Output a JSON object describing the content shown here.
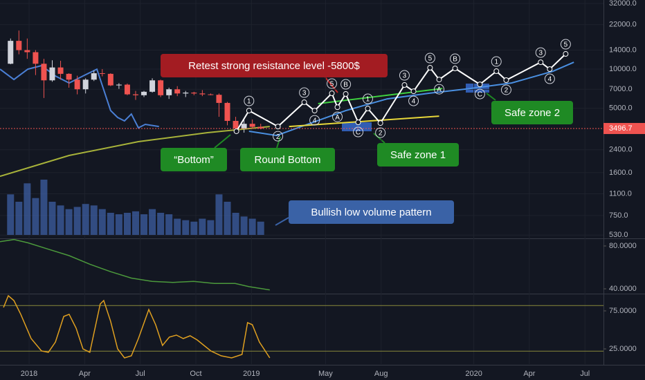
{
  "chart_data": [
    {
      "type": "candlestick",
      "log_scale": true,
      "grid": true,
      "ylim": [
        500,
        34000
      ],
      "yticks": [
        {
          "value": 32000,
          "label": "32000.0"
        },
        {
          "value": 22000,
          "label": "22000.0"
        },
        {
          "value": 14000,
          "label": "14000.0"
        },
        {
          "value": 10000,
          "label": "10000.0"
        },
        {
          "value": 7000,
          "label": "7000.0"
        },
        {
          "value": 5000,
          "label": "5000.0"
        },
        {
          "value": 2400,
          "label": "2400.0"
        },
        {
          "value": 1600,
          "label": "1600.0"
        },
        {
          "value": 1100,
          "label": "1100.0"
        },
        {
          "value": 750,
          "label": "750.0"
        },
        {
          "value": 530,
          "label": "530.0"
        }
      ],
      "xlim": [
        -1.57,
        31
      ],
      "xticks": [
        {
          "value": 0,
          "label": "2018"
        },
        {
          "value": 3,
          "label": "Apr"
        },
        {
          "value": 6,
          "label": "Jul"
        },
        {
          "value": 9,
          "label": "Oct"
        },
        {
          "value": 12,
          "label": "2019"
        },
        {
          "value": 16,
          "label": "May"
        },
        {
          "value": 19,
          "label": "Aug"
        },
        {
          "value": 24,
          "label": "2020"
        },
        {
          "value": 27,
          "label": "Apr"
        },
        {
          "value": 30,
          "label": "Jul"
        }
      ],
      "up_color": "#d1d4dc",
      "down_color": "#ef5350",
      "x": [
        -1.0,
        -0.55,
        -0.1,
        0.35,
        0.8,
        1.25,
        1.7,
        2.15,
        2.6,
        3.05,
        3.5,
        3.95,
        4.4,
        4.85,
        5.3,
        5.75,
        6.2,
        6.65,
        7.1,
        7.55,
        8.0,
        8.45,
        8.9,
        9.35,
        9.8,
        10.25,
        10.7,
        11.15,
        11.6,
        12.05,
        12.5
      ],
      "open": [
        11000,
        16500,
        14000,
        13500,
        11000,
        8200,
        10300,
        9200,
        8300,
        7000,
        8300,
        9300,
        9200,
        7500,
        7600,
        6400,
        6300,
        6700,
        8200,
        6300,
        7000,
        6500,
        6600,
        6500,
        6400,
        6350,
        5500,
        4000,
        3500,
        3800,
        3600
      ],
      "high": [
        17200,
        19800,
        17200,
        14000,
        12000,
        11700,
        11600,
        9300,
        8900,
        8500,
        9750,
        10000,
        9300,
        7800,
        7750,
        6800,
        6800,
        8500,
        8300,
        7200,
        7400,
        6800,
        6700,
        6900,
        6500,
        6500,
        5600,
        4300,
        4200,
        4100,
        3800
      ],
      "low": [
        10900,
        13000,
        12000,
        9000,
        6000,
        8000,
        8300,
        7200,
        6400,
        6500,
        8100,
        8800,
        7400,
        7050,
        6300,
        5800,
        6100,
        6600,
        6100,
        5900,
        6200,
        6100,
        6300,
        6200,
        6300,
        4300,
        3700,
        3200,
        3250,
        3500,
        3450
      ],
      "close": [
        16500,
        14000,
        13500,
        11000,
        8200,
        10300,
        9200,
        8300,
        7000,
        8300,
        9300,
        9200,
        7500,
        7600,
        6400,
        6300,
        6700,
        8200,
        6300,
        7000,
        6500,
        6600,
        6500,
        6400,
        6350,
        5500,
        4000,
        3500,
        3800,
        3600,
        3500
      ],
      "volume": {
        "color": "#3d5fa3",
        "values": [
          55,
          45,
          70,
          50,
          75,
          45,
          40,
          35,
          38,
          42,
          40,
          35,
          30,
          28,
          30,
          32,
          28,
          35,
          30,
          28,
          22,
          20,
          18,
          22,
          20,
          55,
          45,
          30,
          25,
          22,
          18
        ]
      },
      "current_price": {
        "value": 3496.7,
        "color": "#ef5350"
      },
      "lines": [
        {
          "color": "#4a7fd4",
          "x": [
            -1.57,
            -0.82,
            -0.07,
            0.67,
            1.42,
            2.16,
            2.91,
            3.66,
            4.4,
            4.78,
            5.15,
            5.52,
            5.9,
            6.27,
            7.01
          ],
          "values": [
            10000,
            8320,
            10000,
            10640,
            8850,
            7830,
            8850,
            10000,
            4810,
            4250,
            4000,
            4520,
            3540,
            3760,
            3620
          ]
        },
        {
          "color": "#a8b33a",
          "x": [
            -1.57,
            2.16,
            5.9,
            9.63,
            12.99
          ],
          "values": [
            1500,
            2170,
            2770,
            3250,
            3620
          ]
        },
        {
          "color": "#4a90e2",
          "x": [
            11.87,
            13.36,
            15.22,
            17.09,
            19.33,
            21.57,
            23.81,
            26.04,
            28.28,
            29.4
          ],
          "values": [
            3330,
            3090,
            3850,
            4800,
            5910,
            6520,
            7100,
            7830,
            9640,
            11300
          ]
        },
        {
          "color": "#3fd13f",
          "x": [
            15.6,
            22.31
          ],
          "values": [
            5430,
            7100
          ]
        },
        {
          "color": "#e8d83a",
          "x": [
            14.03,
            22.13
          ],
          "values": [
            3620,
            4350
          ]
        }
      ],
      "wave": {
        "color": "#ffffff",
        "x": [
          11.19,
          11.87,
          13.43,
          14.85,
          15.41,
          16.34,
          16.64,
          17.09,
          17.76,
          18.28,
          18.96,
          20.26,
          20.75,
          21.64,
          22.13,
          22.99,
          24.33,
          25.22,
          25.75,
          27.61,
          28.1,
          28.96
        ],
        "values": [
          3330,
          4800,
          3620,
          5560,
          4800,
          6520,
          5100,
          6440,
          3900,
          4980,
          3850,
          7550,
          6760,
          10250,
          8320,
          10130,
          7640,
          9640,
          8230,
          11300,
          10000,
          13090
        ],
        "labels": [
          null,
          "1",
          "2",
          "3",
          "4",
          "5",
          "A",
          "B",
          "C",
          "1",
          "2",
          "3",
          "4",
          "5",
          "A",
          "B",
          "C",
          "1",
          "2",
          "3",
          "4",
          "5"
        ]
      },
      "annotations": [
        {
          "text": "Retest strong resistance level -5800$",
          "color": "#a31c22"
        },
        {
          "text": "“Bottom”",
          "color": "#1f8a24"
        },
        {
          "text": "Round Bottom",
          "color": "#1f8a24"
        },
        {
          "text": "Safe zone 1",
          "color": "#1f8a24"
        },
        {
          "text": "Safe zone 2",
          "color": "#1f8a24"
        },
        {
          "text": "Bullish low volume pattern",
          "color": "#3a62a6"
        }
      ]
    },
    {
      "type": "line",
      "ylim": [
        35.5,
        87.1
      ],
      "yticks": [
        {
          "value": 80,
          "label": "80.0000"
        },
        {
          "value": 40,
          "label": "40.0000"
        }
      ],
      "color": "#4c9a3c",
      "x": [
        -1.57,
        -0.82,
        -0.07,
        1.04,
        2.16,
        3.28,
        4.4,
        5.52,
        6.64,
        7.76,
        8.88,
        10.0,
        11.12,
        11.87,
        12.99
      ],
      "values": [
        84,
        86,
        83,
        77,
        71,
        63,
        56,
        50,
        47,
        46,
        47,
        45,
        45,
        42,
        39
      ]
    },
    {
      "type": "line",
      "ylim": [
        5,
        97.7
      ],
      "yticks": [
        {
          "value": 75,
          "label": "75.0000"
        },
        {
          "value": 25,
          "label": "25.0000"
        }
      ],
      "levels": [
        82,
        22
      ],
      "level_color": "#8a8a3a",
      "color": "#e0a020",
      "x": [
        -1.38,
        -1.12,
        -0.82,
        -0.45,
        0.11,
        0.67,
        1.04,
        1.42,
        1.87,
        2.16,
        2.54,
        2.91,
        3.28,
        3.84,
        4.03,
        4.4,
        4.78,
        5.15,
        5.52,
        5.9,
        6.46,
        6.83,
        7.2,
        7.57,
        7.95,
        8.32,
        8.69,
        9.07,
        9.44,
        9.81,
        10.37,
        10.93,
        11.49,
        11.79,
        12.05,
        12.43,
        12.99
      ],
      "values": [
        79.5,
        95,
        88.6,
        70.5,
        38.6,
        22.3,
        20.5,
        34.1,
        67.7,
        70.5,
        52.3,
        25,
        20.5,
        84.1,
        88.6,
        61.4,
        25,
        13.2,
        15.9,
        38.6,
        76.8,
        56.8,
        29.5,
        40.5,
        43.2,
        38.6,
        42.3,
        36.8,
        29.5,
        22.3,
        15.9,
        13.2,
        17.7,
        59.5,
        56.8,
        34.1,
        13.2
      ]
    }
  ]
}
